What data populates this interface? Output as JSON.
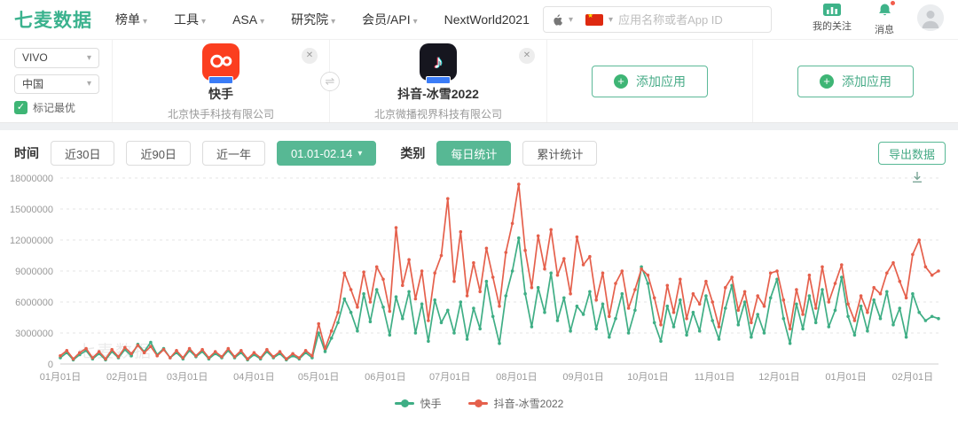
{
  "header": {
    "logo": "七麦数据",
    "nav": [
      "榜单",
      "工具",
      "ASA",
      "研究院",
      "会员/API",
      "NextWorld2021"
    ],
    "search": {
      "placeholder": "应用名称或者App ID"
    },
    "my_follow": "我的关注",
    "messages": "消息"
  },
  "compare": {
    "platform_select": "VIVO",
    "region_select": "中国",
    "mark_best_label": "标记最优",
    "mark_best_checked": true,
    "apps": [
      {
        "name": "快手",
        "company": "北京快手科技有限公司"
      },
      {
        "name": "抖音-冰雪2022",
        "company": "北京微播视界科技有限公司"
      }
    ],
    "add_app_label": "添加应用"
  },
  "filters": {
    "time_label": "时间",
    "time_options": [
      "近30日",
      "近90日",
      "近一年"
    ],
    "date_range": "01.01-02.14",
    "category_label": "类别",
    "category_options": [
      "每日统计",
      "累计统计"
    ],
    "category_selected": "每日统计",
    "export_label": "导出数据"
  },
  "icons": {
    "chevron_down": "▾",
    "close": "✕",
    "check": "✓",
    "plus": "+",
    "swap": "⇌",
    "flag_star": "★",
    "music_note": "♪"
  },
  "watermark": "七麦数据",
  "colors": {
    "brand_green": "#3bb28e",
    "button_green": "#57b894",
    "series_green": "#3fae85",
    "series_red": "#e5604c"
  },
  "chart_data": {
    "type": "line",
    "title": "",
    "xlabel": "",
    "ylabel": "",
    "ylim": [
      0,
      18000000
    ],
    "y_ticks": [
      0,
      3000000,
      6000000,
      9000000,
      12000000,
      15000000,
      18000000
    ],
    "x_tick_labels": [
      "01月01日",
      "02月01日",
      "03月01日",
      "04月01日",
      "05月01日",
      "06月01日",
      "07月01日",
      "08月01日",
      "09月01日",
      "10月01日",
      "11月01日",
      "12月01日",
      "01月01日",
      "02月01日"
    ],
    "x_tick_days": [
      0,
      31,
      59,
      90,
      120,
      151,
      181,
      212,
      243,
      273,
      304,
      334,
      365,
      396
    ],
    "sample_interval_days": 3,
    "grid": "dashed-horizontal",
    "legend_position": "bottom",
    "series": [
      {
        "name": "快手",
        "color": "#3fae85",
        "values_millions": [
          0.6,
          1.1,
          0.4,
          0.9,
          1.3,
          0.5,
          1.0,
          0.4,
          1.2,
          0.6,
          1.4,
          0.8,
          1.9,
          1.2,
          2.1,
          0.9,
          1.5,
          0.6,
          1.1,
          0.5,
          1.3,
          0.7,
          1.2,
          0.5,
          1.0,
          0.6,
          1.3,
          0.6,
          1.1,
          0.4,
          0.9,
          0.5,
          1.2,
          0.6,
          1.0,
          0.4,
          0.8,
          0.5,
          1.1,
          0.6,
          3.0,
          1.2,
          2.5,
          4.0,
          6.3,
          5.0,
          3.2,
          6.8,
          4.1,
          7.2,
          5.5,
          2.8,
          6.5,
          4.4,
          7.0,
          3.0,
          5.8,
          2.2,
          6.2,
          4.0,
          5.2,
          3.0,
          6.0,
          2.4,
          5.4,
          3.4,
          8.0,
          4.6,
          2.0,
          6.6,
          9.0,
          12.2,
          6.8,
          3.6,
          7.4,
          5.0,
          8.8,
          4.2,
          6.4,
          3.2,
          5.6,
          4.8,
          7.0,
          3.4,
          5.8,
          2.6,
          4.4,
          6.8,
          3.0,
          5.2,
          9.4,
          7.8,
          4.0,
          2.2,
          5.6,
          3.6,
          6.2,
          2.8,
          5.0,
          3.2,
          6.6,
          4.2,
          2.4,
          5.4,
          7.6,
          3.8,
          6.0,
          2.6,
          4.8,
          3.0,
          6.4,
          8.2,
          4.4,
          2.0,
          5.8,
          3.4,
          6.6,
          4.0,
          7.2,
          3.6,
          5.2,
          8.4,
          4.6,
          2.8,
          5.6,
          3.2,
          6.2,
          4.4,
          7.0,
          3.8,
          5.4,
          2.6,
          6.8,
          5.0,
          4.2,
          4.6,
          4.4
        ]
      },
      {
        "name": "抖音-冰雪2022",
        "color": "#e5604c",
        "values_millions": [
          0.8,
          1.3,
          0.5,
          1.1,
          1.5,
          0.6,
          1.2,
          0.5,
          1.4,
          0.7,
          1.6,
          1.0,
          1.8,
          1.1,
          1.7,
          0.8,
          1.4,
          0.6,
          1.3,
          0.6,
          1.5,
          0.8,
          1.4,
          0.6,
          1.2,
          0.7,
          1.5,
          0.7,
          1.3,
          0.5,
          1.1,
          0.6,
          1.4,
          0.7,
          1.2,
          0.5,
          1.0,
          0.6,
          1.3,
          0.8,
          3.9,
          1.5,
          3.2,
          5.0,
          8.8,
          7.2,
          5.5,
          8.9,
          6.0,
          9.4,
          8.2,
          5.1,
          13.2,
          7.6,
          10.1,
          6.3,
          9.0,
          4.2,
          8.8,
          10.5,
          16.0,
          8.0,
          12.8,
          6.6,
          9.8,
          7.0,
          11.2,
          8.4,
          5.6,
          10.8,
          13.6,
          17.4,
          11.0,
          7.4,
          12.4,
          9.2,
          13.0,
          8.6,
          10.2,
          6.8,
          12.3,
          9.6,
          10.4,
          6.2,
          8.8,
          4.6,
          7.8,
          9.0,
          5.4,
          7.2,
          9.2,
          8.6,
          6.4,
          3.8,
          7.6,
          5.0,
          8.2,
          4.4,
          6.8,
          5.8,
          8.0,
          6.0,
          3.6,
          7.4,
          8.4,
          5.2,
          7.0,
          4.0,
          6.6,
          5.6,
          8.8,
          9.0,
          6.2,
          3.4,
          7.2,
          4.8,
          8.6,
          5.4,
          9.4,
          6.0,
          7.8,
          9.6,
          5.8,
          4.2,
          6.6,
          5.0,
          7.4,
          6.8,
          8.8,
          9.8,
          8.0,
          6.4,
          10.6,
          12.0,
          9.4,
          8.6,
          9.0
        ]
      }
    ]
  }
}
